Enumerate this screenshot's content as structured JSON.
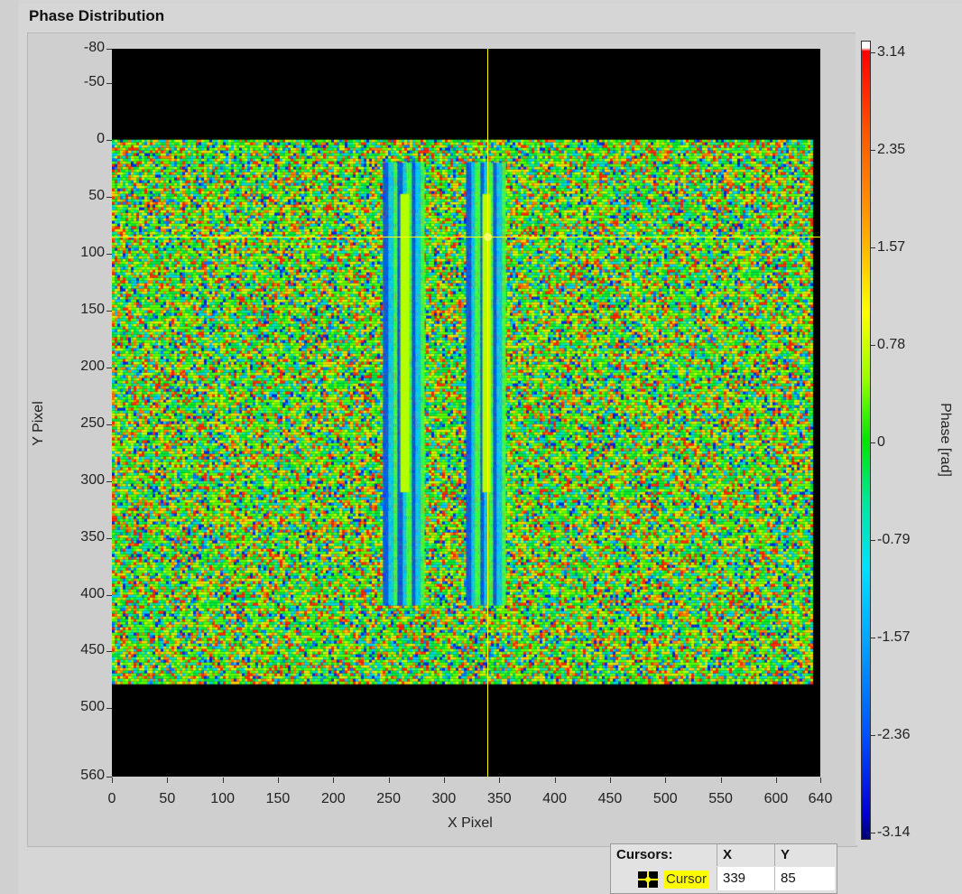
{
  "panel": {
    "title": "Phase Distribution"
  },
  "image_plot": {
    "x_axis": {
      "label": "X Pixel",
      "range": [
        0,
        640
      ],
      "ticks": [
        "0",
        "50",
        "100",
        "150",
        "200",
        "250",
        "300",
        "350",
        "400",
        "450",
        "500",
        "550",
        "600",
        "640"
      ]
    },
    "y_axis": {
      "label": "Y Pixel",
      "range": [
        -80,
        560
      ],
      "ticks": [
        "-80",
        "-50",
        "0",
        "50",
        "100",
        "150",
        "200",
        "250",
        "300",
        "350",
        "400",
        "450",
        "500",
        "560"
      ]
    },
    "image_extent": {
      "x": [
        0,
        633
      ],
      "y": [
        0,
        477
      ]
    },
    "cursor": {
      "x": 339,
      "y": 85,
      "color": "#ffff00"
    }
  },
  "colorbar": {
    "label": "Phase [rad]",
    "ticks": [
      "3.14",
      "2.35",
      "1.57",
      "0.78",
      "0",
      "-0.79",
      "-1.57",
      "-2.36",
      "-3.14"
    ]
  },
  "cursors_table": {
    "headers": [
      "Cursors:",
      "X",
      "Y"
    ],
    "rows": [
      {
        "name": "Cursor",
        "x": "339",
        "y": "85",
        "icon": "cursor-crosshair-icon"
      }
    ]
  }
}
